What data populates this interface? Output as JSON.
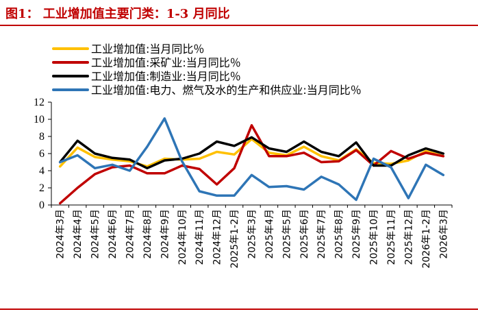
{
  "header": {
    "title": "图1：  工业增加值主要门类：1-3 月同比"
  },
  "chart_data": {
    "type": "line",
    "title": "图1：  工业增加值主要门类：1-3 月同比",
    "xlabel": "",
    "ylabel": "",
    "ylim": [
      0,
      12
    ],
    "yticks": [
      0,
      2,
      4,
      6,
      8,
      10,
      12
    ],
    "grid": false,
    "legend_position": "top-left",
    "categories": [
      "2024年3月",
      "2024年4月",
      "2024年5月",
      "2024年6月",
      "2024年7月",
      "2024年8月",
      "2024年9月",
      "2024年10月",
      "2024年11月",
      "2024年12月",
      "2025年1-2月",
      "2025年3月",
      "2025年4月",
      "2025年5月",
      "2025年6月",
      "2025年7月",
      "2025年8月",
      "2025年9月",
      "2025年10月",
      "2025年11月",
      "2025年12月",
      "2026年1-2月",
      "2026年3月"
    ],
    "series": [
      {
        "name": "工业增加值:当月同比％",
        "color": "#ffc000",
        "values": [
          4.5,
          6.7,
          5.6,
          5.3,
          5.1,
          4.5,
          5.4,
          5.3,
          5.4,
          6.2,
          5.9,
          7.7,
          6.1,
          5.8,
          6.8,
          5.7,
          5.2,
          6.5,
          4.9,
          4.8,
          5.2,
          6.3,
          5.7
        ]
      },
      {
        "name": "工业增加值:采矿业:当月同比％",
        "color": "#c00000",
        "values": [
          0.2,
          2.0,
          3.6,
          4.4,
          4.6,
          3.7,
          3.7,
          4.6,
          4.2,
          2.4,
          4.3,
          9.3,
          5.7,
          5.7,
          6.1,
          5.0,
          5.1,
          6.4,
          4.6,
          6.3,
          5.4,
          6.1,
          5.7
        ]
      },
      {
        "name": "工业增加值:制造业:当月同比％",
        "color": "#000000",
        "values": [
          5.0,
          7.5,
          6.0,
          5.5,
          5.3,
          4.3,
          5.2,
          5.4,
          6.0,
          7.4,
          6.9,
          7.9,
          6.6,
          6.2,
          7.4,
          6.2,
          5.7,
          7.3,
          4.6,
          4.6,
          5.8,
          6.6,
          6.0
        ]
      },
      {
        "name": "工业增加值:电力、燃气及水的生产和供应业:当月同比％",
        "color": "#2e75b6",
        "values": [
          5.0,
          5.8,
          4.3,
          4.7,
          4.0,
          6.8,
          10.1,
          5.1,
          1.6,
          1.1,
          1.1,
          3.5,
          2.1,
          2.2,
          1.8,
          3.3,
          2.4,
          0.6,
          5.4,
          4.4,
          0.8,
          4.7,
          3.5
        ]
      }
    ]
  }
}
